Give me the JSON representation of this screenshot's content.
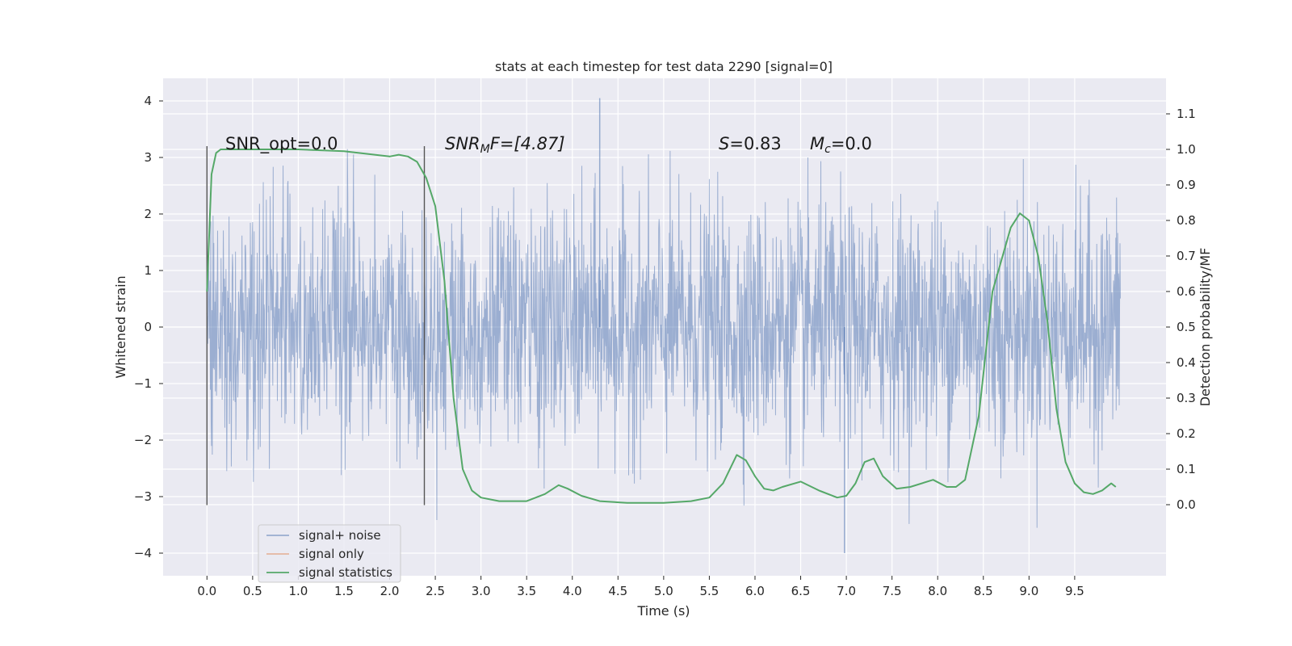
{
  "chart_data": {
    "type": "line",
    "title": "stats at each timestep for test data 2290 [signal=0]",
    "xlabel": "Time (s)",
    "ylabel_left": "Whitened strain",
    "ylabel_right": "Detection probability/MF",
    "xlim": [
      -0.48,
      10.5
    ],
    "ylim_left": [
      -4.4,
      4.4
    ],
    "ylim_right": [
      -0.2,
      1.2
    ],
    "x_ticks": [
      "0.0",
      "0.5",
      "1.0",
      "1.5",
      "2.0",
      "2.5",
      "3.0",
      "3.5",
      "4.0",
      "4.5",
      "5.0",
      "5.5",
      "6.0",
      "6.5",
      "7.0",
      "7.5",
      "8.0",
      "8.5",
      "9.0",
      "9.5"
    ],
    "y_left_ticks": [
      "−4",
      "−3",
      "−2",
      "−1",
      "0",
      "1",
      "2",
      "3",
      "4"
    ],
    "y_right_ticks": [
      "0.0",
      "0.1",
      "0.2",
      "0.3",
      "0.4",
      "0.5",
      "0.6",
      "0.7",
      "0.8",
      "0.9",
      "1.0",
      "1.1"
    ],
    "grid": true,
    "legend_position": "bottom-left",
    "legend": [
      "signal+ noise",
      "signal only",
      "signal statistics"
    ],
    "colors": {
      "noise": "#4c72b0",
      "signal": "#dd8452",
      "stats": "#55a868",
      "background": "#eaeaf2"
    },
    "annotations": {
      "snr_opt": "SNR_opt=0.0",
      "snr_mf_prefix": "SNR",
      "snr_mf_sub": "M",
      "snr_mf_suffix": "F=[4.87]",
      "s_var": "S",
      "s_val": "=0.83",
      "mc_var": "M",
      "mc_sub": "c",
      "mc_val": "=0.0"
    },
    "vertical_lines_x": [
      0.0,
      2.38
    ],
    "noise_series": {
      "name": "signal+ noise",
      "x_range": [
        0.0,
        10.0
      ],
      "typical_envelope": 1.3,
      "peak_max": 4.05,
      "peak_min": -4.0
    },
    "signal_only_series": {
      "name": "signal only",
      "values": []
    },
    "statistics_series": {
      "name": "signal statistics",
      "x": [
        0.0,
        0.05,
        0.1,
        0.15,
        0.2,
        0.3,
        0.5,
        1.0,
        1.5,
        2.0,
        2.1,
        2.2,
        2.3,
        2.4,
        2.5,
        2.6,
        2.7,
        2.8,
        2.9,
        3.0,
        3.2,
        3.5,
        3.7,
        3.85,
        3.95,
        4.1,
        4.3,
        4.6,
        5.0,
        5.3,
        5.5,
        5.65,
        5.8,
        5.9,
        6.0,
        6.1,
        6.2,
        6.3,
        6.5,
        6.7,
        6.9,
        7.0,
        7.1,
        7.2,
        7.3,
        7.4,
        7.55,
        7.7,
        7.95,
        8.1,
        8.2,
        8.3,
        8.45,
        8.6,
        8.8,
        8.9,
        9.0,
        9.1,
        9.2,
        9.3,
        9.4,
        9.5,
        9.6,
        9.7,
        9.8,
        9.9,
        9.95
      ],
      "y": [
        0.6,
        0.93,
        0.99,
        1.0,
        1.0,
        1.0,
        1.0,
        1.0,
        0.995,
        0.98,
        0.985,
        0.98,
        0.965,
        0.92,
        0.84,
        0.63,
        0.3,
        0.1,
        0.04,
        0.02,
        0.01,
        0.01,
        0.03,
        0.055,
        0.045,
        0.025,
        0.01,
        0.005,
        0.005,
        0.01,
        0.02,
        0.06,
        0.14,
        0.125,
        0.08,
        0.045,
        0.04,
        0.05,
        0.065,
        0.04,
        0.02,
        0.025,
        0.06,
        0.12,
        0.13,
        0.08,
        0.045,
        0.05,
        0.07,
        0.05,
        0.05,
        0.07,
        0.25,
        0.6,
        0.78,
        0.82,
        0.8,
        0.7,
        0.52,
        0.27,
        0.12,
        0.06,
        0.035,
        0.03,
        0.04,
        0.06,
        0.05
      ]
    }
  }
}
